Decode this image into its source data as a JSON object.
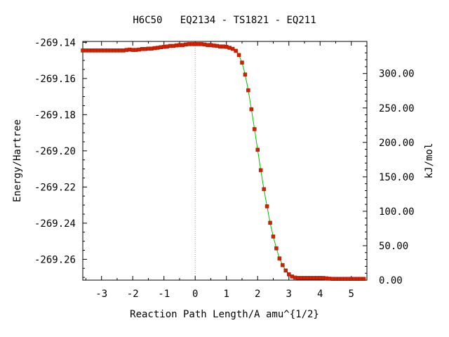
{
  "chart_data": {
    "type": "line",
    "title": "H6C50   EQ2134 - TS1821 - EQ211",
    "xlabel": "Reaction Path Length/A amu^{1/2}",
    "ylabel": "Energy/Hartree",
    "y2label": "kJ/mol",
    "xlim": [
      -3.6,
      5.5
    ],
    "ylim": [
      -269.2715,
      -269.1395
    ],
    "y2lim": [
      0.0,
      346.6
    ],
    "x_ticks": [
      -3,
      -2,
      -1,
      0,
      1,
      2,
      3,
      4,
      5
    ],
    "y_ticks": [
      -269.14,
      -269.16,
      -269.18,
      -269.2,
      -269.22,
      -269.24,
      -269.26
    ],
    "y_tick_labels": [
      "-269.14",
      "-269.16",
      "-269.18",
      "-269.20",
      "-269.22",
      "-269.24",
      "-269.26"
    ],
    "y2_ticks": [
      0,
      50,
      100,
      150,
      200,
      250,
      300
    ],
    "y2_tick_labels": [
      "0.00",
      "50.00",
      "100.00",
      "150.00",
      "200.00",
      "250.00",
      "300.00"
    ],
    "vline_x": 0,
    "grid": false,
    "colors": {
      "line": "#00c000",
      "marker": "#d42000",
      "marker_edge": "#a01800",
      "vline": "#a0a0a0"
    },
    "series": [
      {
        "x": [
          -3.6,
          -3.5,
          -3.4,
          -3.3,
          -3.2,
          -3.1,
          -3.0,
          -2.9,
          -2.8,
          -2.7,
          -2.6,
          -2.5,
          -2.4,
          -2.3,
          -2.2,
          -2.1,
          -2.0,
          -1.9,
          -1.8,
          -1.7,
          -1.6,
          -1.5,
          -1.4,
          -1.3,
          -1.2,
          -1.1,
          -1.0,
          -0.9,
          -0.8,
          -0.7,
          -0.6,
          -0.5,
          -0.4,
          -0.3,
          -0.2,
          -0.1,
          0.0,
          0.1,
          0.2,
          0.3,
          0.4,
          0.5,
          0.6,
          0.7,
          0.8,
          0.9,
          1.0,
          1.1,
          1.2,
          1.3,
          1.4,
          1.5,
          1.6,
          1.7,
          1.8,
          1.9,
          2.0,
          2.1,
          2.2,
          2.3,
          2.4,
          2.5,
          2.6,
          2.7,
          2.8,
          2.9,
          3.0,
          3.1,
          3.2,
          3.3,
          3.4,
          3.5,
          3.6,
          3.7,
          3.8,
          3.9,
          4.0,
          4.1,
          4.2,
          4.3,
          4.4,
          4.5,
          4.6,
          4.7,
          4.8,
          4.9,
          5.0,
          5.1,
          5.2,
          5.3,
          5.4
        ],
        "y": [
          -269.1445,
          -269.1445,
          -269.1445,
          -269.1445,
          -269.1445,
          -269.1445,
          -269.1445,
          -269.1445,
          -269.1445,
          -269.1445,
          -269.1445,
          -269.1445,
          -269.1445,
          -269.1445,
          -269.1442,
          -269.144,
          -269.1442,
          -269.1442,
          -269.144,
          -269.1437,
          -269.1437,
          -269.1435,
          -269.1435,
          -269.1432,
          -269.143,
          -269.1427,
          -269.1425,
          -269.1423,
          -269.142,
          -269.142,
          -269.1417,
          -269.1415,
          -269.1415,
          -269.1412,
          -269.141,
          -269.141,
          -269.141,
          -269.141,
          -269.141,
          -269.1412,
          -269.1415,
          -269.1415,
          -269.1418,
          -269.142,
          -269.1423,
          -269.1423,
          -269.1425,
          -269.143,
          -269.1436,
          -269.1447,
          -269.147,
          -269.1512,
          -269.1578,
          -269.1665,
          -269.177,
          -269.188,
          -269.1994,
          -269.2107,
          -269.2212,
          -269.2307,
          -269.2398,
          -269.2474,
          -269.2539,
          -269.2595,
          -269.2632,
          -269.2662,
          -269.2683,
          -269.2695,
          -269.2701,
          -269.2703,
          -269.2703,
          -269.2703,
          -269.2703,
          -269.2703,
          -269.2703,
          -269.2703,
          -269.2703,
          -269.2703,
          -269.2705,
          -269.2707,
          -269.2708,
          -269.2708,
          -269.2708,
          -269.2708,
          -269.2708,
          -269.2708,
          -269.2708,
          -269.2708,
          -269.2708,
          -269.2708,
          -269.2708
        ]
      }
    ]
  }
}
